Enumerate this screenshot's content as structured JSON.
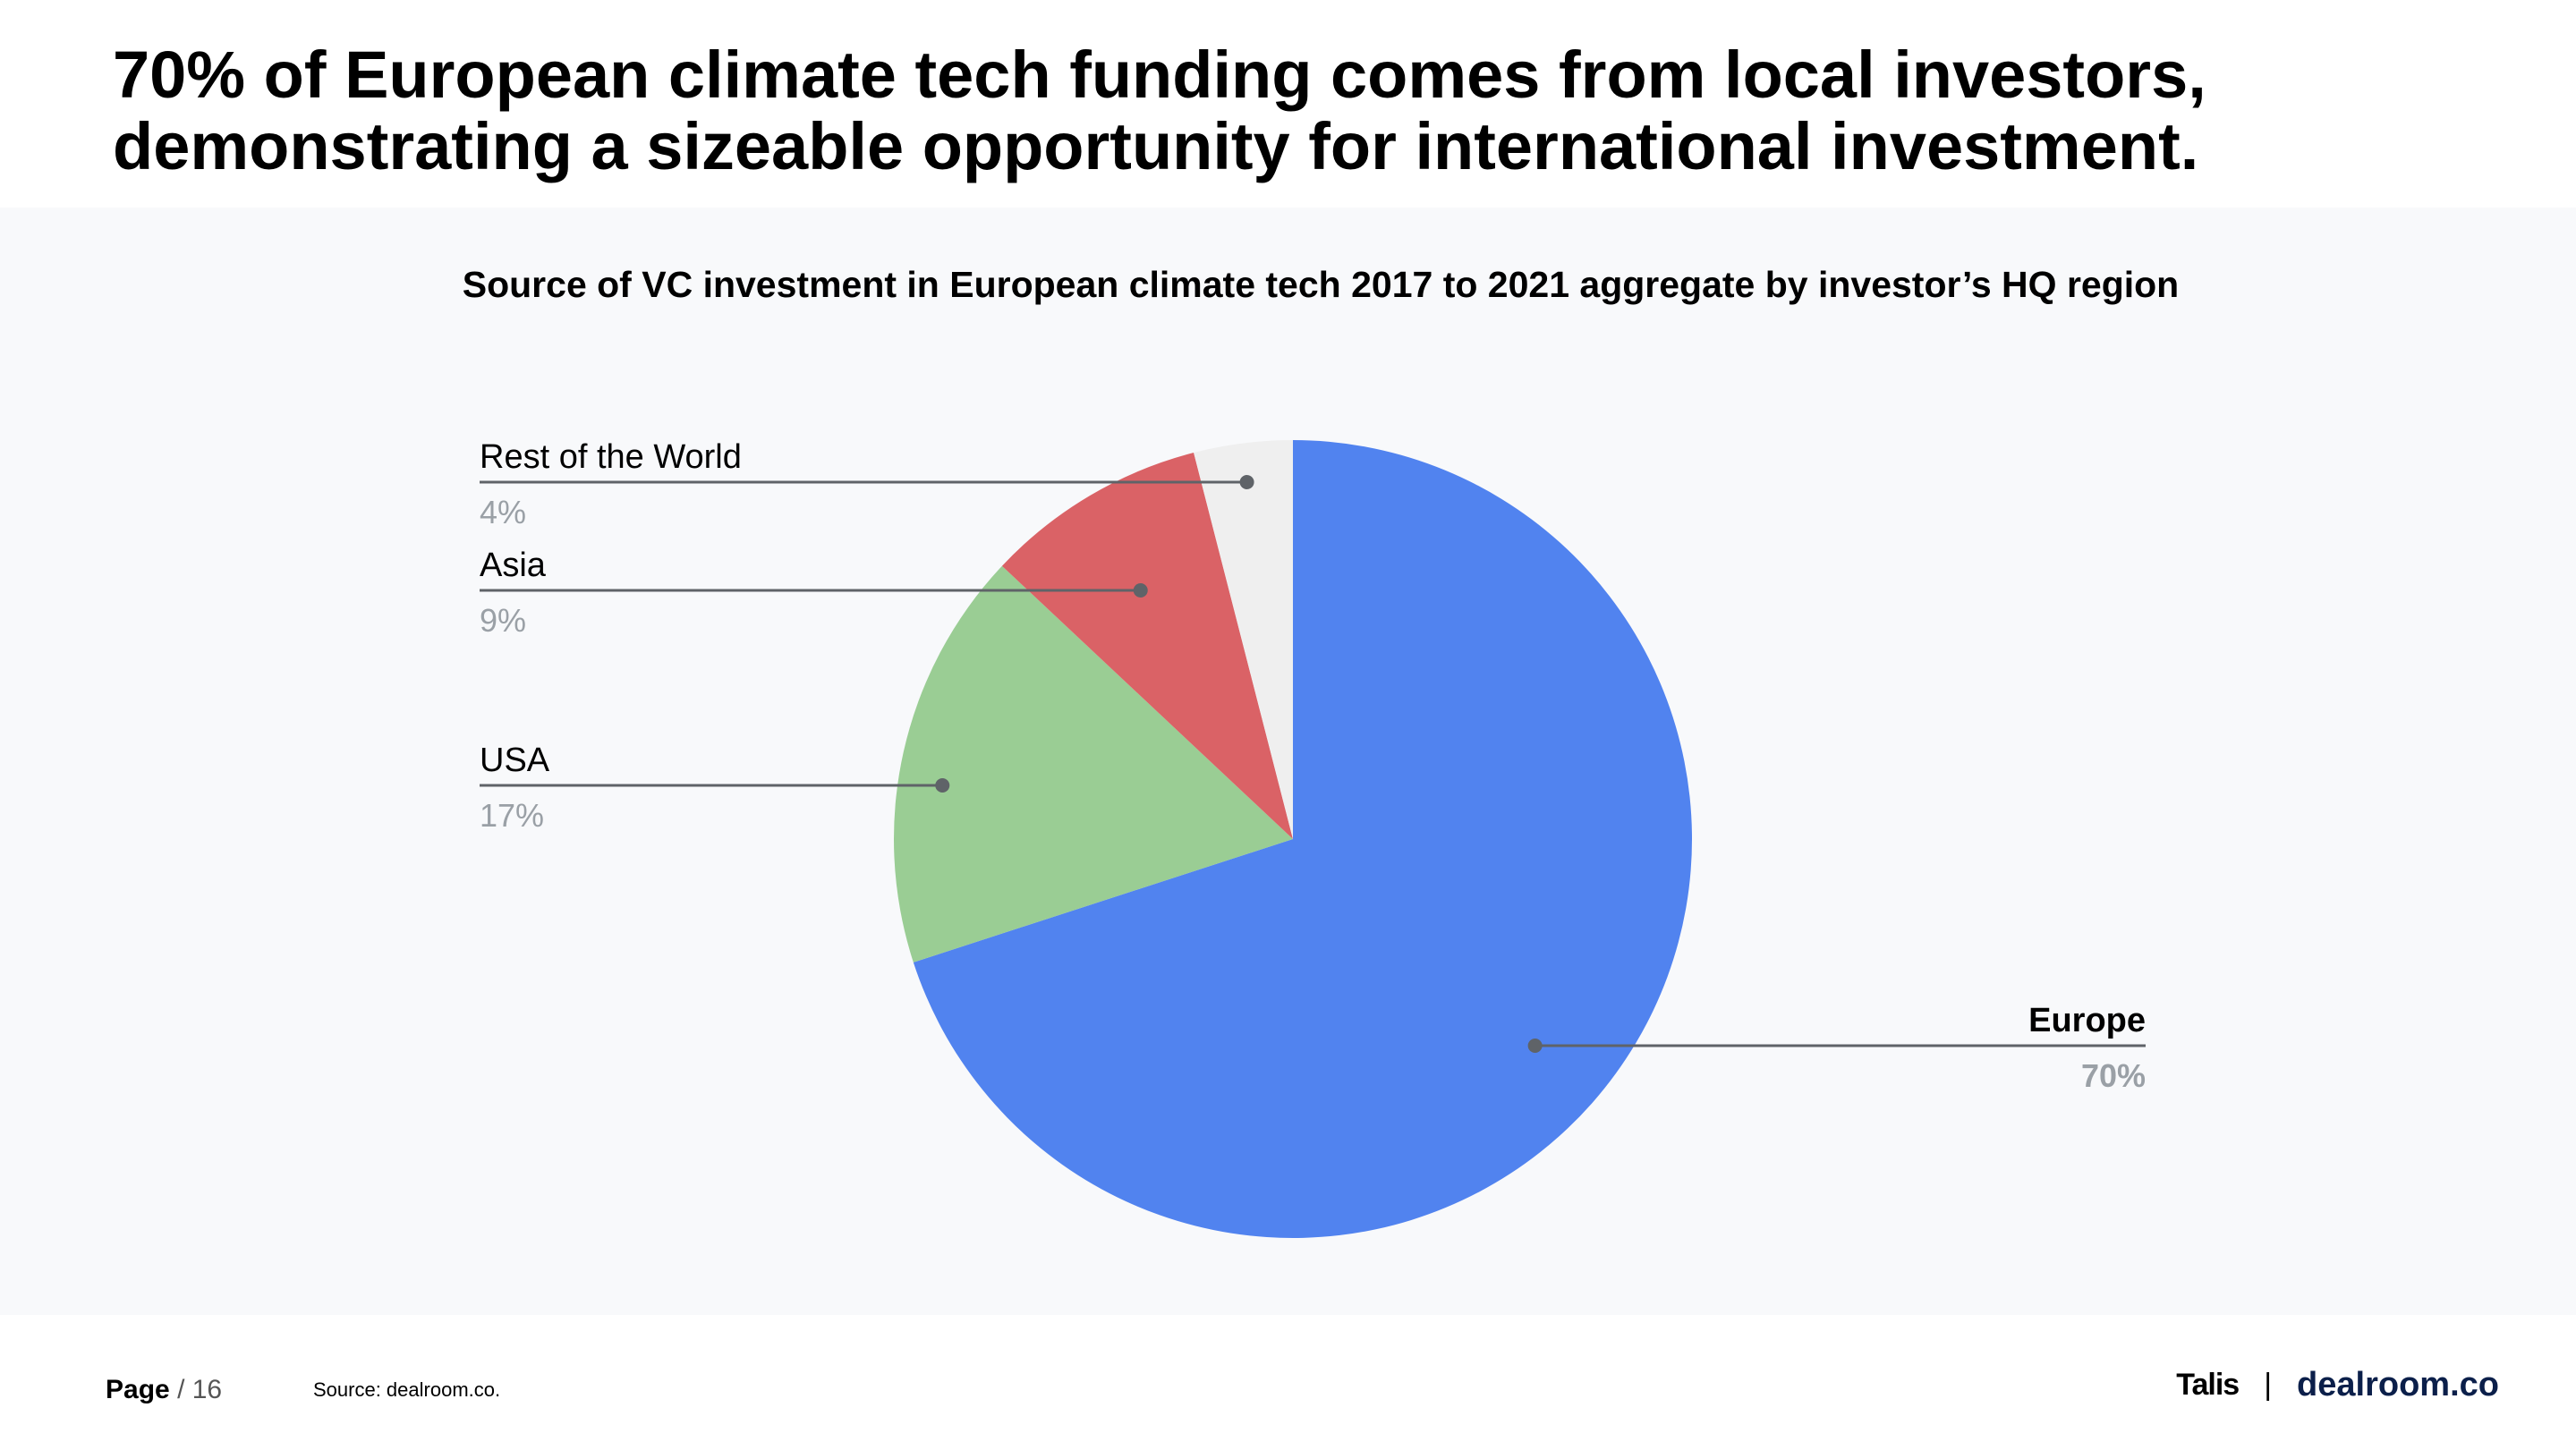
{
  "headline": "70% of European climate tech funding comes from local investors, demonstrating a sizeable opportunity for international investment.",
  "chart_data": {
    "type": "pie",
    "title": "Source of VC investment in European climate tech 2017 to 2021 aggregate by investor’s HQ region",
    "slices": [
      {
        "name": "Europe",
        "value": 70,
        "label": "70%",
        "color": "#5183ef"
      },
      {
        "name": "USA",
        "value": 17,
        "label": "17%",
        "color": "#9acd94"
      },
      {
        "name": "Asia",
        "value": 9,
        "label": "9%",
        "color": "#da6266"
      },
      {
        "name": "Rest of the World",
        "value": 4,
        "label": "4%",
        "color": "#efefef"
      }
    ]
  },
  "footer": {
    "page_label": "Page",
    "page_number": "/ 16",
    "source": "Source: dealroom.co.",
    "brand_left": "Talis",
    "brand_sep": "|",
    "brand_right": "dealroom.co"
  }
}
